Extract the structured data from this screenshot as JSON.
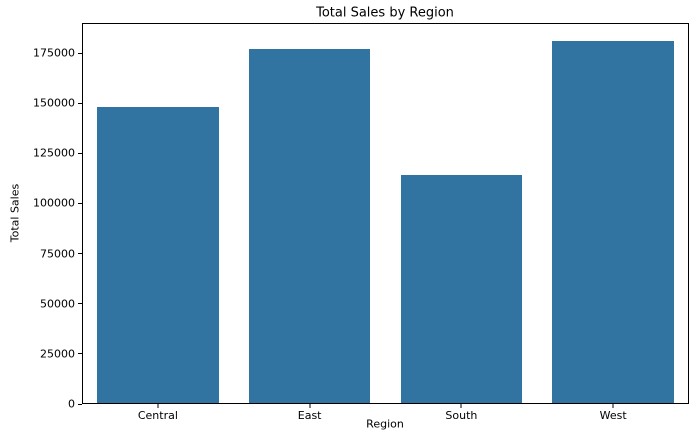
{
  "chart_data": {
    "type": "bar",
    "title": "Total Sales by Region",
    "xlabel": "Region",
    "ylabel": "Total Sales",
    "categories": [
      "Central",
      "East",
      "South",
      "West"
    ],
    "values": [
      148000,
      177000,
      114000,
      181000
    ],
    "yticks": [
      0,
      25000,
      50000,
      75000,
      100000,
      125000,
      150000,
      175000
    ],
    "ylim": [
      0,
      190000
    ],
    "bar_color": "#3274a1",
    "axis_color": "#000000",
    "background_color": "#ffffff",
    "bar_width_fraction": 0.8,
    "grid": false,
    "legend": false
  }
}
